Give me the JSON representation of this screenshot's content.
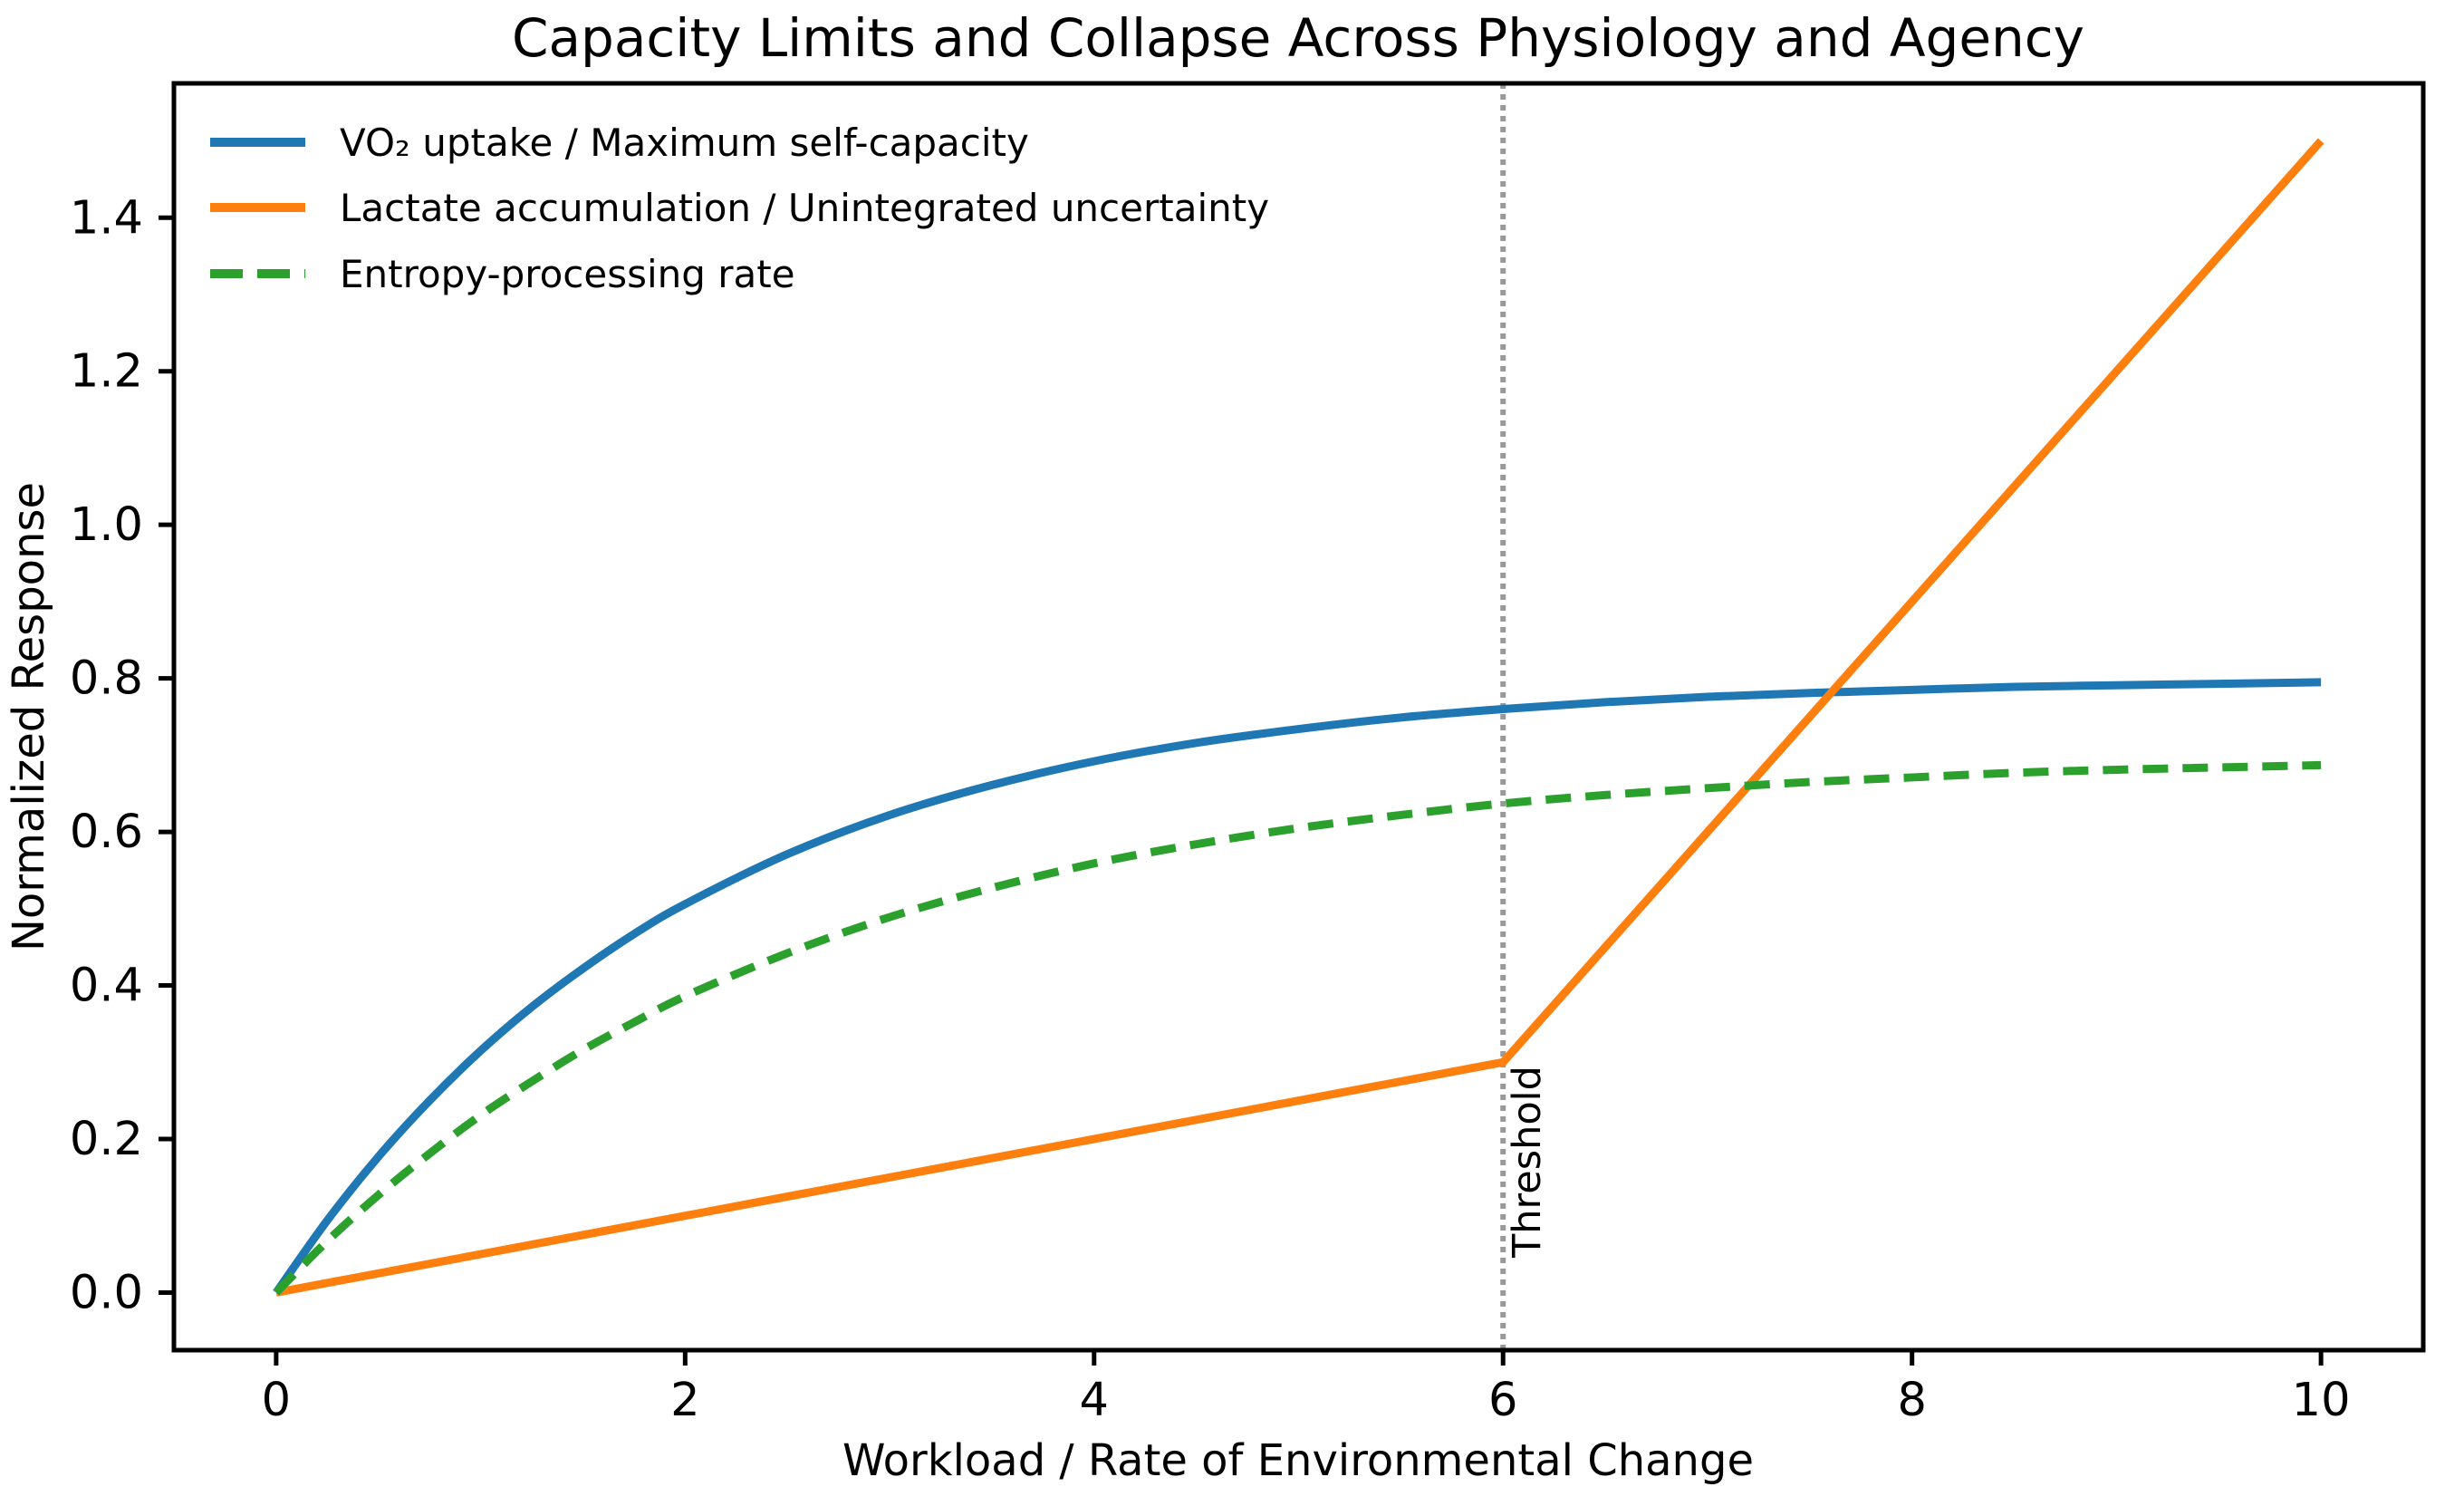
{
  "chart_data": {
    "type": "line",
    "title": "Capacity Limits and Collapse Across Physiology and Agency",
    "xlabel": "Workload / Rate of Environmental Change",
    "ylabel": "Normalized Response",
    "xlim": [
      -0.5,
      10.5
    ],
    "ylim": [
      -0.075,
      1.575
    ],
    "x_tick_labels": [
      "0",
      "2",
      "4",
      "6",
      "8",
      "10"
    ],
    "y_tick_labels": [
      "0.0",
      "0.2",
      "0.4",
      "0.6",
      "0.8",
      "1.0",
      "1.2",
      "1.4"
    ],
    "grid": false,
    "legend_position": "upper left",
    "series": [
      {
        "name": "vo2-uptake",
        "label": "VO₂ uptake / Maximum self-capacity",
        "color": "#1f77b4",
        "style": "solid",
        "smooth": true,
        "x": [
          0,
          0.25,
          0.5,
          0.75,
          1,
          1.25,
          1.5,
          1.75,
          2,
          2.5,
          3,
          3.5,
          4,
          4.5,
          5,
          5.5,
          6,
          6.5,
          7,
          7.5,
          8,
          8.5,
          9,
          9.5,
          10
        ],
        "y": [
          0,
          0.094,
          0.177,
          0.25,
          0.315,
          0.372,
          0.422,
          0.467,
          0.506,
          0.571,
          0.622,
          0.661,
          0.692,
          0.716,
          0.734,
          0.749,
          0.76,
          0.769,
          0.776,
          0.781,
          0.785,
          0.789,
          0.791,
          0.793,
          0.795
        ]
      },
      {
        "name": "lactate-accumulation",
        "label": "Lactate accumulation / Unintegrated uncertainty",
        "color": "#ff7f0e",
        "style": "solid",
        "smooth": false,
        "x": [
          0,
          6,
          10
        ],
        "y": [
          0,
          0.3,
          1.5
        ]
      },
      {
        "name": "entropy-processing-rate",
        "label": "Entropy-processing rate",
        "color": "#2ca02c",
        "style": "dashed",
        "smooth": true,
        "x": [
          0,
          0.25,
          0.5,
          0.75,
          1,
          1.25,
          1.5,
          1.75,
          2,
          2.5,
          3,
          3.5,
          4,
          4.5,
          5,
          5.5,
          6,
          6.5,
          7,
          7.5,
          8,
          8.5,
          9,
          9.5,
          10
        ],
        "y": [
          0,
          0.067,
          0.127,
          0.181,
          0.231,
          0.275,
          0.316,
          0.352,
          0.386,
          0.442,
          0.489,
          0.527,
          0.559,
          0.584,
          0.605,
          0.622,
          0.637,
          0.648,
          0.657,
          0.665,
          0.671,
          0.677,
          0.681,
          0.684,
          0.687
        ]
      }
    ],
    "annotations": [
      {
        "type": "vline",
        "x": 6,
        "label": "Threshold",
        "color": "#999999",
        "style": "dotted"
      }
    ]
  }
}
